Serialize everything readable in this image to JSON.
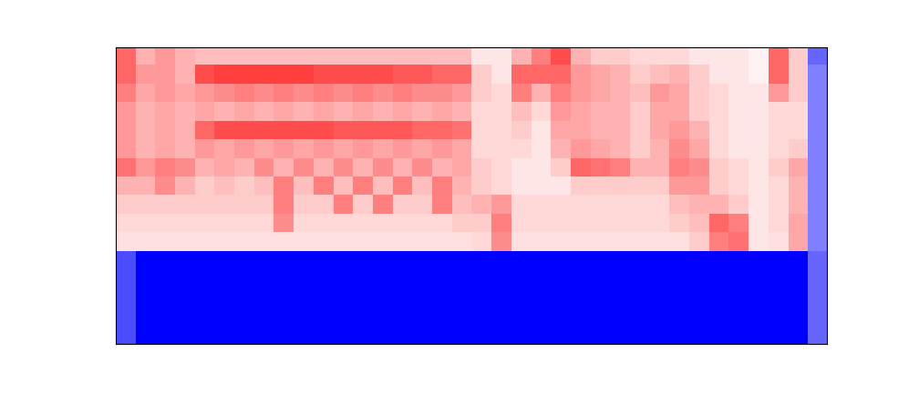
{
  "chart_data": {
    "type": "heatmap",
    "tick_labels": false,
    "color_range": [
      -1,
      1
    ],
    "cells": [
      [
        0.6,
        0.3,
        0.4,
        0.3,
        0.25,
        0.25,
        0.25,
        0.25,
        0.25,
        0.25,
        0.25,
        0.25,
        0.25,
        0.25,
        0.25,
        0.25,
        0.25,
        0.25,
        0.1,
        0.1,
        0.3,
        0.5,
        0.7,
        0.3,
        0.2,
        0.2,
        0.15,
        0.15,
        0.15,
        0.1,
        0.1,
        0.1,
        0.05,
        0.6,
        0.2,
        -0.6
      ],
      [
        0.6,
        0.4,
        0.4,
        0.3,
        0.7,
        0.75,
        0.75,
        0.75,
        0.75,
        0.75,
        0.7,
        0.7,
        0.7,
        0.7,
        0.65,
        0.65,
        0.6,
        0.6,
        0.2,
        0.1,
        0.6,
        0.6,
        0.6,
        0.4,
        0.35,
        0.3,
        0.2,
        0.25,
        0.3,
        0.2,
        0.1,
        0.1,
        0.05,
        0.6,
        0.2,
        -0.5
      ],
      [
        0.5,
        0.35,
        0.4,
        0.35,
        0.4,
        0.45,
        0.5,
        0.45,
        0.5,
        0.45,
        0.5,
        0.45,
        0.5,
        0.45,
        0.5,
        0.45,
        0.45,
        0.4,
        0.2,
        0.15,
        0.5,
        0.3,
        0.5,
        0.4,
        0.35,
        0.3,
        0.25,
        0.4,
        0.35,
        0.2,
        0.15,
        0.1,
        0.1,
        0.4,
        0.2,
        -0.5
      ],
      [
        0.4,
        0.3,
        0.35,
        0.3,
        0.35,
        0.3,
        0.35,
        0.3,
        0.35,
        0.3,
        0.35,
        0.3,
        0.35,
        0.3,
        0.35,
        0.3,
        0.35,
        0.3,
        0.15,
        0.15,
        0.25,
        0.15,
        0.4,
        0.35,
        0.3,
        0.3,
        0.2,
        0.35,
        0.35,
        0.2,
        0.15,
        0.1,
        0.1,
        0.15,
        0.15,
        -0.5
      ],
      [
        0.4,
        0.3,
        0.35,
        0.3,
        0.6,
        0.7,
        0.7,
        0.7,
        0.7,
        0.7,
        0.7,
        0.65,
        0.65,
        0.65,
        0.65,
        0.6,
        0.6,
        0.55,
        0.15,
        0.15,
        0.2,
        0.1,
        0.35,
        0.35,
        0.3,
        0.3,
        0.2,
        0.35,
        0.4,
        0.3,
        0.15,
        0.1,
        0.1,
        0.15,
        0.15,
        -0.5
      ],
      [
        0.4,
        0.3,
        0.35,
        0.3,
        0.4,
        0.35,
        0.4,
        0.35,
        0.4,
        0.35,
        0.4,
        0.35,
        0.4,
        0.35,
        0.4,
        0.35,
        0.4,
        0.35,
        0.15,
        0.15,
        0.15,
        0.1,
        0.3,
        0.4,
        0.35,
        0.3,
        0.2,
        0.3,
        0.45,
        0.35,
        0.15,
        0.1,
        0.1,
        0.15,
        0.2,
        -0.5
      ],
      [
        0.55,
        0.4,
        0.5,
        0.45,
        0.3,
        0.35,
        0.3,
        0.45,
        0.3,
        0.45,
        0.3,
        0.45,
        0.3,
        0.45,
        0.3,
        0.45,
        0.3,
        0.35,
        0.2,
        0.15,
        0.1,
        0.1,
        0.2,
        0.6,
        0.55,
        0.5,
        0.3,
        0.3,
        0.5,
        0.45,
        0.2,
        0.15,
        0.1,
        0.2,
        0.35,
        -0.5
      ],
      [
        0.3,
        0.3,
        0.45,
        0.3,
        0.2,
        0.25,
        0.2,
        0.25,
        0.5,
        0.25,
        0.5,
        0.25,
        0.5,
        0.25,
        0.5,
        0.25,
        0.5,
        0.3,
        0.2,
        0.15,
        0.1,
        0.1,
        0.1,
        0.2,
        0.2,
        0.2,
        0.2,
        0.2,
        0.4,
        0.4,
        0.2,
        0.15,
        0.1,
        0.15,
        0.3,
        -0.5
      ],
      [
        0.2,
        0.2,
        0.2,
        0.2,
        0.2,
        0.2,
        0.2,
        0.2,
        0.5,
        0.2,
        0.2,
        0.5,
        0.2,
        0.5,
        0.2,
        0.2,
        0.5,
        0.25,
        0.3,
        0.4,
        0.15,
        0.15,
        0.15,
        0.15,
        0.15,
        0.15,
        0.15,
        0.15,
        0.25,
        0.3,
        0.3,
        0.2,
        0.1,
        0.15,
        0.3,
        -0.5
      ],
      [
        0.15,
        0.15,
        0.15,
        0.15,
        0.15,
        0.15,
        0.15,
        0.15,
        0.45,
        0.15,
        0.15,
        0.15,
        0.15,
        0.15,
        0.15,
        0.15,
        0.15,
        0.2,
        0.2,
        0.5,
        0.15,
        0.15,
        0.15,
        0.15,
        0.15,
        0.15,
        0.15,
        0.15,
        0.2,
        0.25,
        0.6,
        0.5,
        0.1,
        0.15,
        0.35,
        -0.5
      ],
      [
        0.12,
        0.12,
        0.12,
        0.12,
        0.12,
        0.12,
        0.12,
        0.12,
        0.12,
        0.12,
        0.12,
        0.12,
        0.12,
        0.12,
        0.12,
        0.12,
        0.12,
        0.12,
        0.15,
        0.45,
        0.12,
        0.12,
        0.12,
        0.12,
        0.12,
        0.12,
        0.12,
        0.12,
        0.12,
        0.2,
        0.5,
        0.55,
        0.1,
        0.12,
        0.35,
        -0.5
      ],
      [
        -0.7,
        -1,
        -1,
        -1,
        -1,
        -1,
        -1,
        -1,
        -1,
        -1,
        -1,
        -1,
        -1,
        -1,
        -1,
        -1,
        -1,
        -1,
        -1,
        -1,
        -1,
        -1,
        -1,
        -1,
        -1,
        -1,
        -1,
        -1,
        -1,
        -1,
        -1,
        -1,
        -1,
        -1,
        -1,
        -0.6
      ],
      [
        -0.7,
        -1,
        -1,
        -1,
        -1,
        -1,
        -1,
        -1,
        -1,
        -1,
        -1,
        -1,
        -1,
        -1,
        -1,
        -1,
        -1,
        -1,
        -1,
        -1,
        -1,
        -1,
        -1,
        -1,
        -1,
        -1,
        -1,
        -1,
        -1,
        -1,
        -1,
        -1,
        -1,
        -1,
        -1,
        -0.6
      ],
      [
        -0.7,
        -1,
        -1,
        -1,
        -1,
        -1,
        -1,
        -1,
        -1,
        -1,
        -1,
        -1,
        -1,
        -1,
        -1,
        -1,
        -1,
        -1,
        -1,
        -1,
        -1,
        -1,
        -1,
        -1,
        -1,
        -1,
        -1,
        -1,
        -1,
        -1,
        -1,
        -1,
        -1,
        -1,
        -1,
        -0.6
      ],
      [
        -0.7,
        -1,
        -1,
        -1,
        -1,
        -1,
        -1,
        -1,
        -1,
        -1,
        -1,
        -1,
        -1,
        -1,
        -1,
        -1,
        -1,
        -1,
        -1,
        -1,
        -1,
        -1,
        -1,
        -1,
        -1,
        -1,
        -1,
        -1,
        -1,
        -1,
        -1,
        -1,
        -1,
        -1,
        -1,
        -0.6
      ],
      [
        -0.7,
        -1,
        -1,
        -1,
        -1,
        -1,
        -1,
        -1,
        -1,
        -1,
        -1,
        -1,
        -1,
        -1,
        -1,
        -1,
        -1,
        -1,
        -1,
        -1,
        -1,
        -1,
        -1,
        -1,
        -1,
        -1,
        -1,
        -1,
        -1,
        -1,
        -1,
        -1,
        -1,
        -1,
        -1,
        -0.6
      ]
    ]
  }
}
